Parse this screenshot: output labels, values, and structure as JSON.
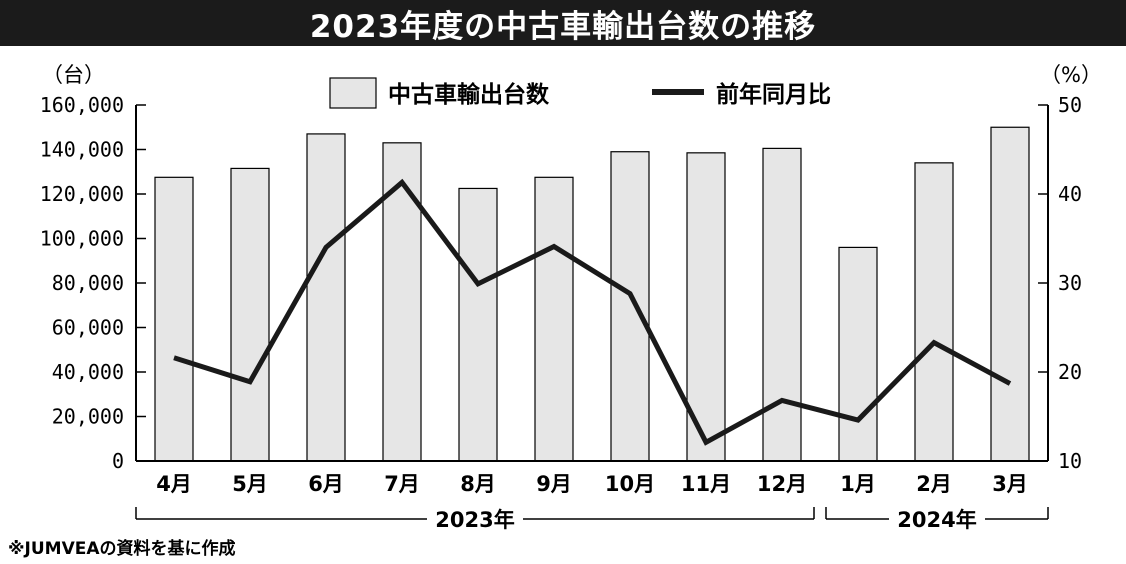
{
  "title": "2023年度の中古車輸出台数の推移",
  "source": "※JUMVEAの資料を基に作成",
  "chart_data": {
    "type": "bar",
    "categories": [
      "4月",
      "5月",
      "6月",
      "7月",
      "8月",
      "9月",
      "10月",
      "11月",
      "12月",
      "1月",
      "2月",
      "3月"
    ],
    "year_groups": [
      {
        "label": "2023年",
        "months": 9
      },
      {
        "label": "2024年",
        "months": 3
      }
    ],
    "series": [
      {
        "name": "中古車輸出台数",
        "kind": "bar",
        "axis": "left",
        "values": [
          127500,
          131500,
          147000,
          143000,
          122500,
          127500,
          139000,
          138500,
          140500,
          96000,
          134000,
          150000
        ]
      },
      {
        "name": "前年同月比",
        "kind": "line",
        "axis": "right",
        "values": [
          21.6,
          18.9,
          34.0,
          41.3,
          29.9,
          34.1,
          28.8,
          12.1,
          16.8,
          14.6,
          23.3,
          18.7
        ]
      }
    ],
    "y_left": {
      "unit": "（台）",
      "min": 0,
      "max": 160000,
      "step": 20000,
      "ticks": [
        "0",
        "20,000",
        "40,000",
        "60,000",
        "80,000",
        "100,000",
        "120,000",
        "140,000",
        "160,000"
      ]
    },
    "y_right": {
      "unit": "（%）",
      "min": 10,
      "max": 50,
      "step": 10,
      "ticks": [
        "10",
        "20",
        "30",
        "40",
        "50"
      ]
    },
    "colors": {
      "bar_fill": "#e6e6e6",
      "bar_stroke": "#000000",
      "line": "#1a1a1a",
      "title_bg": "#1b1b1b"
    },
    "legend": "top-center",
    "grid": false
  }
}
